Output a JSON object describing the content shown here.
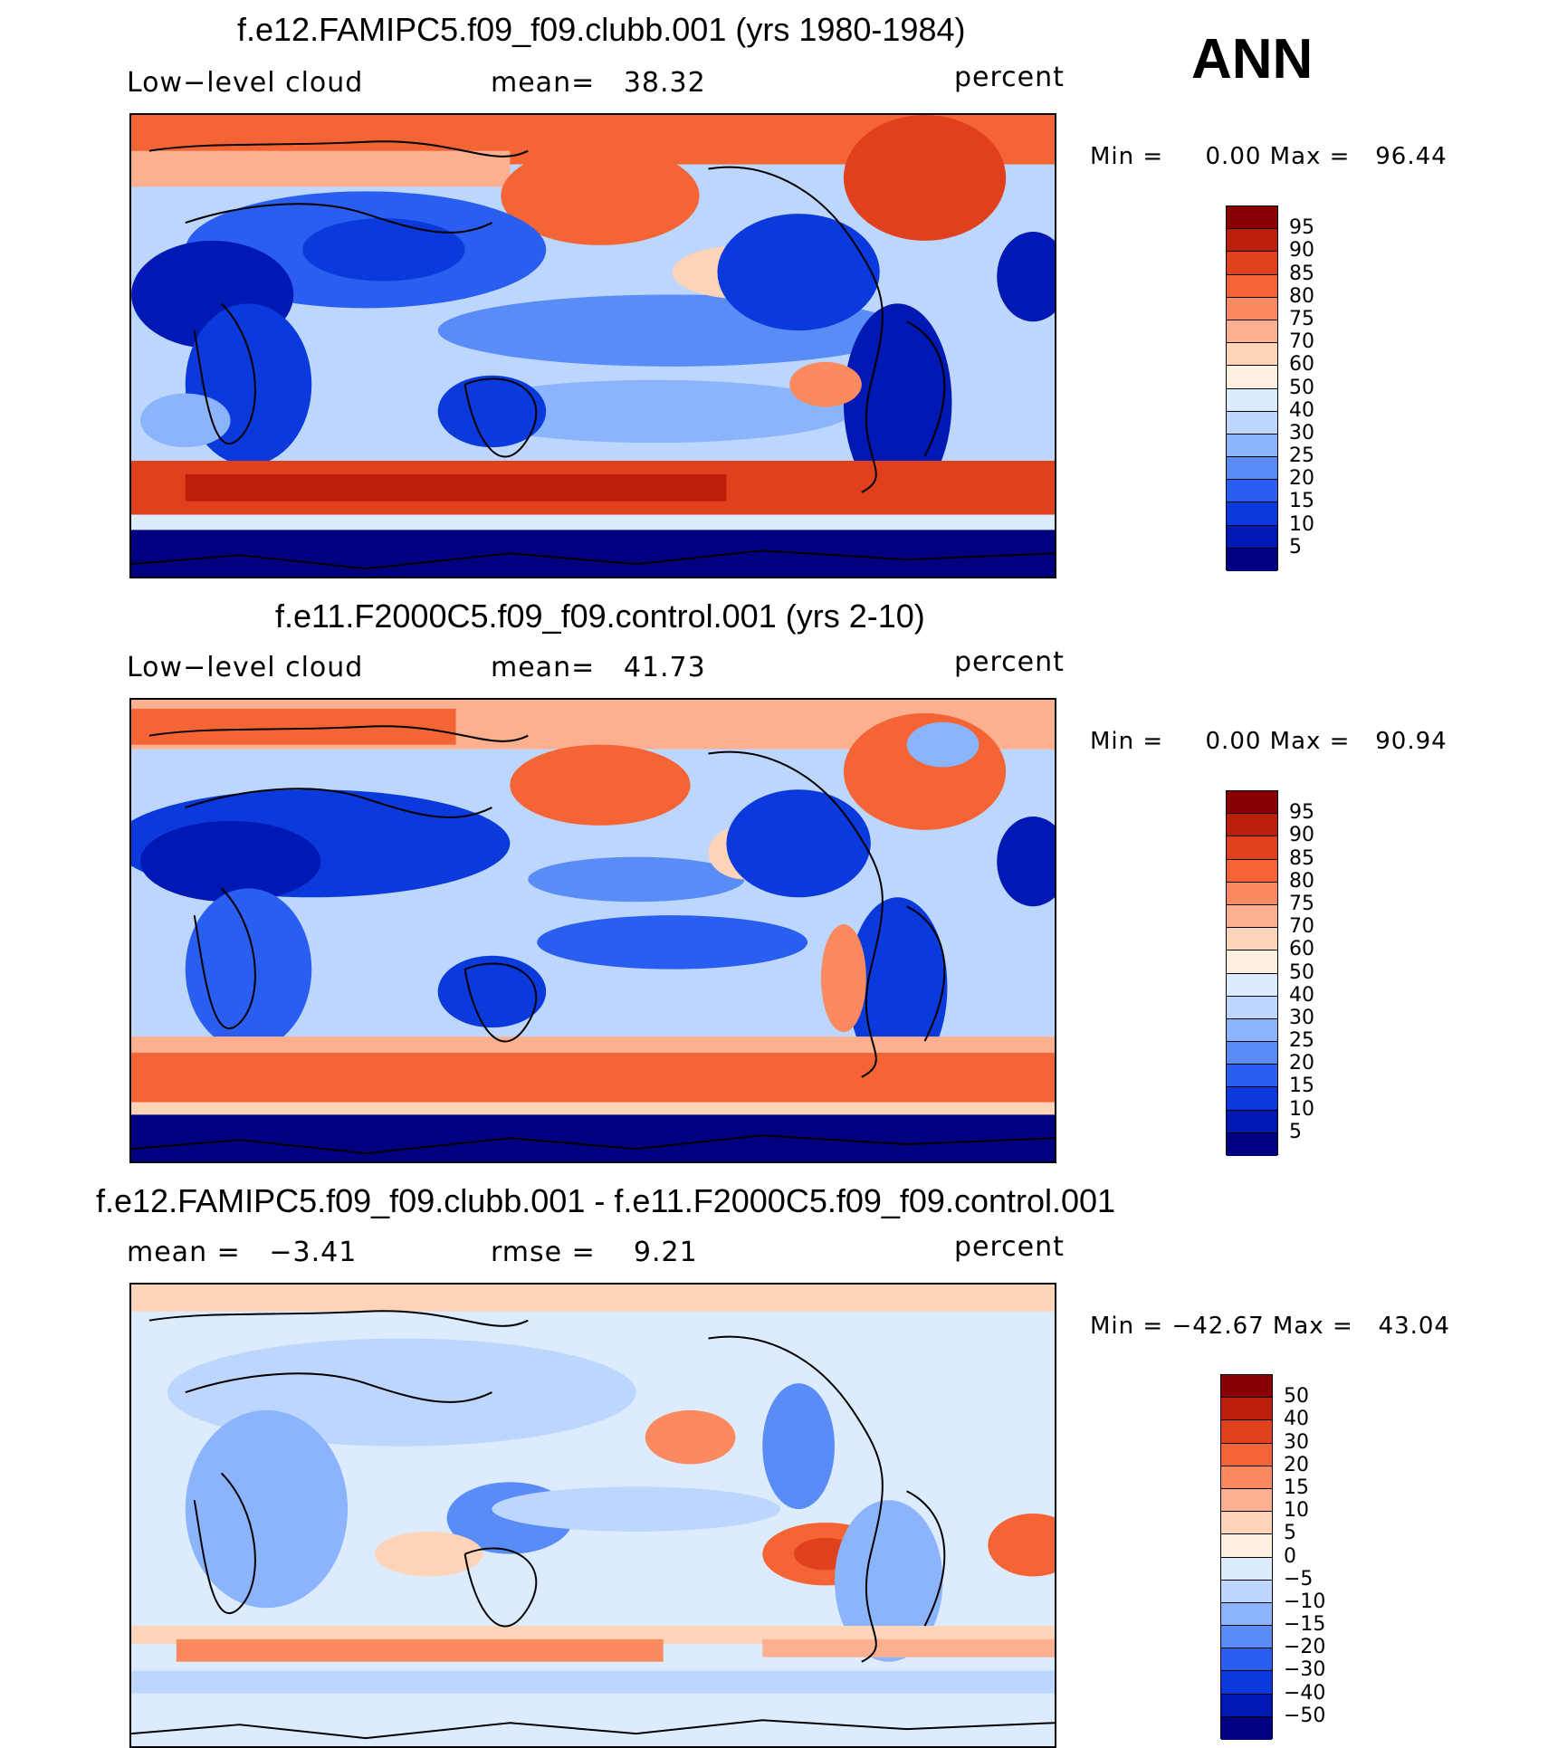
{
  "season": "ANN",
  "units": "percent",
  "colors": {
    "abs_scale": [
      "#000080",
      "#0018b4",
      "#0a3adc",
      "#2a5ef0",
      "#5a8cf8",
      "#8cb4fc",
      "#bcd6fe",
      "#dcecfe",
      "#fef0e0",
      "#fed4b8",
      "#fdb090",
      "#fc8a60",
      "#f46434",
      "#e0401c",
      "#bc1e0a",
      "#880004"
    ],
    "diff_scale": [
      "#000080",
      "#0018b4",
      "#0a3adc",
      "#2a5ef0",
      "#5a8cf8",
      "#8cb4fc",
      "#bcd6fe",
      "#dcecfe",
      "#fef0e0",
      "#fed4b8",
      "#fdb090",
      "#fc8a60",
      "#f46434",
      "#e0401c",
      "#bc1e0a",
      "#880004"
    ],
    "coastline": "#000000"
  },
  "panels": [
    {
      "title": "f.e12.FAMIPC5.f09_f09.clubb.001 (yrs 1980-1984)",
      "left_label": "Low−level cloud",
      "center_label": "mean=   38.32",
      "right_label": "percent",
      "min_max": "Min =     0.00 Max =   96.44",
      "colorbar": [
        "95",
        "90",
        "85",
        "80",
        "75",
        "70",
        "60",
        "50",
        "40",
        "30",
        "25",
        "20",
        "15",
        "10",
        "5"
      ]
    },
    {
      "title": "f.e11.F2000C5.f09_f09.control.001 (yrs 2-10)",
      "left_label": "Low−level cloud",
      "center_label": "mean=   41.73",
      "right_label": "percent",
      "min_max": "Min =     0.00 Max =   90.94",
      "colorbar": [
        "95",
        "90",
        "85",
        "80",
        "75",
        "70",
        "60",
        "50",
        "40",
        "30",
        "25",
        "20",
        "15",
        "10",
        "5"
      ]
    },
    {
      "title": "f.e12.FAMIPC5.f09_f09.clubb.001 - f.e11.F2000C5.f09_f09.control.001",
      "left_label": "mean =   −3.41",
      "center_label": "rmse =    9.21",
      "right_label": "percent",
      "min_max": "Min = −42.67 Max =   43.04",
      "colorbar": [
        "50",
        "40",
        "30",
        "20",
        "15",
        "10",
        "5",
        "0",
        "−5",
        "−10",
        "−15",
        "−20",
        "−30",
        "−40",
        "−50"
      ]
    }
  ]
}
